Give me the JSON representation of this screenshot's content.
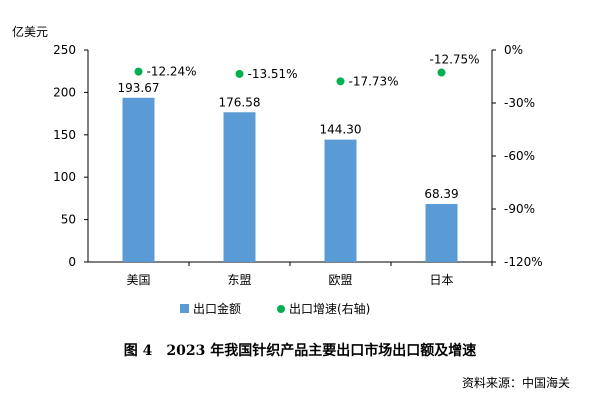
{
  "chart_data": {
    "type": "bar+scatter",
    "categories": [
      "美国",
      "东盟",
      "欧盟",
      "日本"
    ],
    "series": [
      {
        "name": "出口金额",
        "type": "bar",
        "axis": "left",
        "values": [
          193.67,
          176.58,
          144.3,
          68.39
        ],
        "labels": [
          "193.67",
          "176.58",
          "144.30",
          "68.39"
        ],
        "color": "#5b9bd5"
      },
      {
        "name": "出口增速(右轴)",
        "type": "scatter",
        "axis": "right",
        "values": [
          -12.24,
          -13.51,
          -17.73,
          -12.75
        ],
        "labels": [
          "-12.24%",
          "-13.51%",
          "-17.73%",
          "-12.75%"
        ],
        "color": "#00b050"
      }
    ],
    "ylabel": "亿美元",
    "ylim": [
      0,
      250
    ],
    "yticks": [
      "0",
      "50",
      "100",
      "150",
      "200",
      "250"
    ],
    "y2lim": [
      -120,
      0
    ],
    "y2ticks": [
      "0%",
      "-30%",
      "-60%",
      "-90%",
      "-120%"
    ],
    "legend_position": "bottom",
    "grid": false
  },
  "caption": "图 4　2023 年我国针织产品主要出口市场出口额及增速",
  "source": "资料来源：中国海关"
}
